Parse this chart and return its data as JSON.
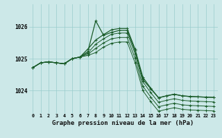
{
  "bg_color": "#cce8e8",
  "grid_color": "#99cccc",
  "line_color": "#1a5c2a",
  "xlabel": "Graphe pression niveau de la mer (hPa)",
  "xlabel_fontsize": 6.5,
  "yticks": [
    1024,
    1025,
    1026
  ],
  "ylim": [
    1023.3,
    1026.7
  ],
  "xlim": [
    -0.5,
    23.5
  ],
  "series_spike": [
    1024.72,
    1024.87,
    1024.9,
    1024.87,
    1024.84,
    1025.0,
    1025.05,
    1025.22,
    1026.18,
    1025.73,
    1025.82,
    1025.88,
    1025.88,
    1025.25,
    1024.35,
    1024.06,
    1023.78,
    1023.84,
    1023.89,
    1023.84,
    1023.82,
    1023.81,
    1023.8,
    1023.79
  ],
  "series_main": [
    1024.72,
    1024.87,
    1024.9,
    1024.87,
    1024.84,
    1025.0,
    1025.05,
    1025.3,
    1025.58,
    1025.75,
    1025.9,
    1025.94,
    1025.94,
    1025.3,
    1024.42,
    1024.08,
    1023.78,
    1023.84,
    1023.89,
    1023.84,
    1023.82,
    1023.81,
    1023.8,
    1023.79
  ],
  "series_flat1": [
    1024.72,
    1024.87,
    1024.9,
    1024.87,
    1024.84,
    1025.0,
    1025.05,
    1025.18,
    1025.45,
    1025.62,
    1025.76,
    1025.8,
    1025.8,
    1025.16,
    1024.28,
    1023.94,
    1023.64,
    1023.7,
    1023.75,
    1023.7,
    1023.68,
    1023.67,
    1023.66,
    1023.65
  ],
  "series_flat2": [
    1024.72,
    1024.87,
    1024.9,
    1024.87,
    1024.84,
    1025.0,
    1025.05,
    1025.14,
    1025.32,
    1025.49,
    1025.62,
    1025.66,
    1025.66,
    1025.02,
    1024.14,
    1023.8,
    1023.5,
    1023.56,
    1023.61,
    1023.56,
    1023.54,
    1023.53,
    1023.52,
    1023.51
  ],
  "series_flat3": [
    1024.72,
    1024.87,
    1024.9,
    1024.87,
    1024.84,
    1025.0,
    1025.05,
    1025.1,
    1025.19,
    1025.36,
    1025.48,
    1025.52,
    1025.52,
    1024.88,
    1024.0,
    1023.66,
    1023.36,
    1023.42,
    1023.47,
    1023.42,
    1023.4,
    1023.39,
    1023.38,
    1023.37
  ]
}
